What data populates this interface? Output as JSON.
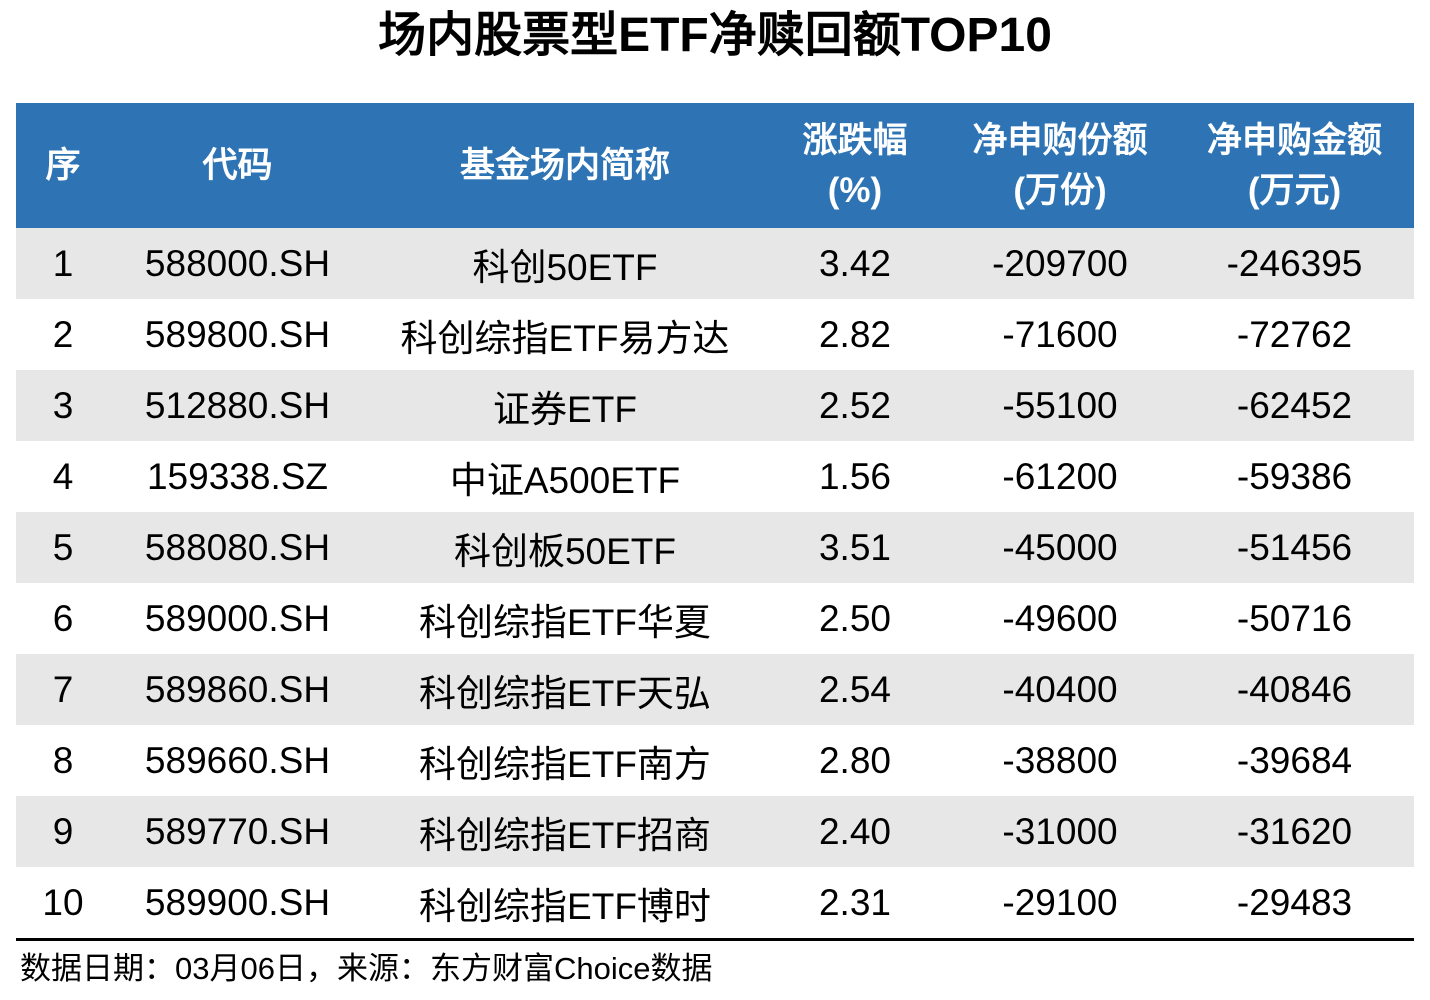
{
  "page": {
    "title": "场内股票型ETF净赎回额TOP10",
    "footer_text": "数据日期：03月06日，来源：东方财富Choice数据"
  },
  "colors": {
    "header_bg": "#2E74B5",
    "header_text": "#FFFFFF",
    "row_stripe_bg": "#E7E7E7",
    "row_bg": "#FFFFFF",
    "body_text": "#000000",
    "divider": "#000000"
  },
  "table": {
    "headers": [
      {
        "line1": "序",
        "line2": ""
      },
      {
        "line1": "代码",
        "line2": ""
      },
      {
        "line1": "基金场内简称",
        "line2": ""
      },
      {
        "line1": "涨跌幅",
        "line2": "(%)"
      },
      {
        "line1": "净申购份额",
        "line2": "(万份)"
      },
      {
        "line1": "净申购金额",
        "line2": "(万元)"
      }
    ],
    "cell_names": [
      "cell-rank",
      "cell-code",
      "cell-fund-name",
      "cell-change-pct",
      "cell-net-shares",
      "cell-net-amount"
    ],
    "rows": [
      [
        "1",
        "588000.SH",
        "科创50ETF",
        "3.42",
        "-209700",
        "-246395"
      ],
      [
        "2",
        "589800.SH",
        "科创综指ETF易方达",
        "2.82",
        "-71600",
        "-72762"
      ],
      [
        "3",
        "512880.SH",
        "证券ETF",
        "2.52",
        "-55100",
        "-62452"
      ],
      [
        "4",
        "159338.SZ",
        "中证A500ETF",
        "1.56",
        "-61200",
        "-59386"
      ],
      [
        "5",
        "588080.SH",
        "科创板50ETF",
        "3.51",
        "-45000",
        "-51456"
      ],
      [
        "6",
        "589000.SH",
        "科创综指ETF华夏",
        "2.50",
        "-49600",
        "-50716"
      ],
      [
        "7",
        "589860.SH",
        "科创综指ETF天弘",
        "2.54",
        "-40400",
        "-40846"
      ],
      [
        "8",
        "589660.SH",
        "科创综指ETF南方",
        "2.80",
        "-38800",
        "-39684"
      ],
      [
        "9",
        "589770.SH",
        "科创综指ETF招商",
        "2.40",
        "-31000",
        "-31620"
      ],
      [
        "10",
        "589900.SH",
        "科创综指ETF博时",
        "2.31",
        "-29100",
        "-29483"
      ]
    ]
  },
  "chart_data": {
    "type": "table",
    "title": "场内股票型ETF净赎回额TOP10",
    "columns": [
      "序",
      "代码",
      "基金场内简称",
      "涨跌幅(%)",
      "净申购份额(万份)",
      "净申购金额(万元)"
    ],
    "rows": [
      [
        1,
        "588000.SH",
        "科创50ETF",
        3.42,
        -209700,
        -246395
      ],
      [
        2,
        "589800.SH",
        "科创综指ETF易方达",
        2.82,
        -71600,
        -72762
      ],
      [
        3,
        "512880.SH",
        "证券ETF",
        2.52,
        -55100,
        -62452
      ],
      [
        4,
        "159338.SZ",
        "中证A500ETF",
        1.56,
        -61200,
        -59386
      ],
      [
        5,
        "588080.SH",
        "科创板50ETF",
        3.51,
        -45000,
        -51456
      ],
      [
        6,
        "589000.SH",
        "科创综指ETF华夏",
        2.5,
        -49600,
        -50716
      ],
      [
        7,
        "589860.SH",
        "科创综指ETF天弘",
        2.54,
        -40400,
        -40846
      ],
      [
        8,
        "589660.SH",
        "科创综指ETF南方",
        2.8,
        -38800,
        -39684
      ],
      [
        9,
        "589770.SH",
        "科创综指ETF招商",
        2.4,
        -31000,
        -31620
      ],
      [
        10,
        "589900.SH",
        "科创综指ETF博时",
        2.31,
        -29100,
        -29483
      ]
    ],
    "footnote": "数据日期：03月06日，来源：东方财富Choice数据"
  }
}
